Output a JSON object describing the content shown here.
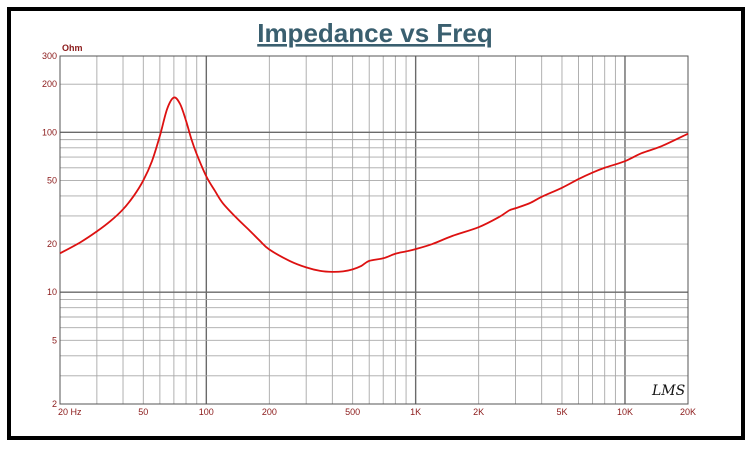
{
  "chart_data": {
    "type": "line",
    "title": "Impedance vs Freq",
    "ylabel_unit": "Ohm",
    "signature": "LMS",
    "x_scale": "log",
    "y_scale": "log",
    "xlim": [
      20,
      20000
    ],
    "ylim": [
      2,
      300
    ],
    "grid": true,
    "x_ticks": [
      {
        "value": 20,
        "label": "20  Hz"
      },
      {
        "value": 50,
        "label": "50"
      },
      {
        "value": 100,
        "label": "100"
      },
      {
        "value": 200,
        "label": "200"
      },
      {
        "value": 500,
        "label": "500"
      },
      {
        "value": 1000,
        "label": "1K"
      },
      {
        "value": 2000,
        "label": "2K"
      },
      {
        "value": 5000,
        "label": "5K"
      },
      {
        "value": 10000,
        "label": "10K"
      },
      {
        "value": 20000,
        "label": "20K"
      }
    ],
    "y_ticks": [
      {
        "value": 300,
        "label": "300"
      },
      {
        "value": 200,
        "label": "200"
      },
      {
        "value": 100,
        "label": "100"
      },
      {
        "value": 50,
        "label": "50"
      },
      {
        "value": 20,
        "label": "20"
      },
      {
        "value": 10,
        "label": "10"
      },
      {
        "value": 5,
        "label": "5"
      },
      {
        "value": 2,
        "label": "2"
      }
    ],
    "colors": {
      "curve": "#dd1111",
      "title": "#3a5f6f",
      "tick_labels": "#8b1a1a",
      "grid": "#a8a8a8",
      "frame": "#000000"
    },
    "series": [
      {
        "x": [
          20,
          25,
          30,
          35,
          40,
          45,
          50,
          55,
          60,
          65,
          70,
          75,
          80,
          85,
          90,
          100,
          110,
          120,
          140,
          160,
          180,
          200,
          250,
          300,
          350,
          400,
          450,
          500,
          550,
          600,
          700,
          800,
          900,
          1000,
          1200,
          1500,
          2000,
          2500,
          2800,
          3000,
          3500,
          4000,
          5000,
          6000,
          7000,
          8000,
          10000,
          12000,
          15000,
          20000
        ],
        "y": [
          17.5,
          20.5,
          24,
          28,
          33,
          40,
          50,
          66,
          95,
          140,
          165,
          150,
          118,
          90,
          73,
          53,
          43,
          36,
          29,
          24.5,
          21,
          18.5,
          15.7,
          14.3,
          13.6,
          13.4,
          13.5,
          13.9,
          14.6,
          15.7,
          16.3,
          17.4,
          18,
          18.6,
          20,
          22.5,
          25.5,
          29.5,
          32.5,
          33.5,
          36,
          39.5,
          45,
          51,
          56,
          60,
          66,
          74,
          82,
          98
        ]
      }
    ]
  }
}
